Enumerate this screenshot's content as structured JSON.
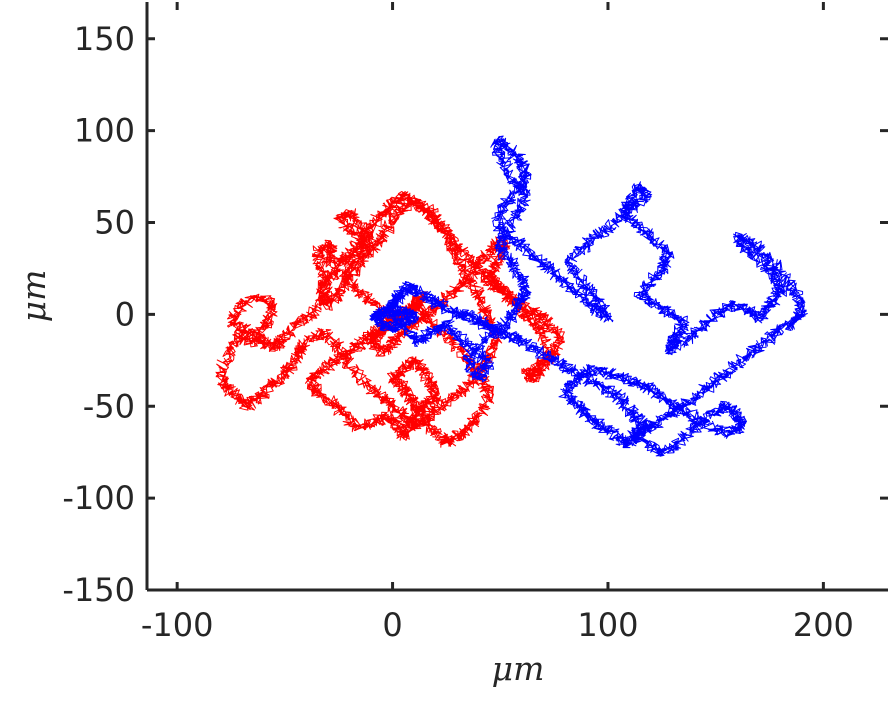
{
  "chart_data": {
    "type": "line",
    "title": "",
    "xlabel": "μm",
    "ylabel": "μm",
    "xlim": [
      -114,
      230
    ],
    "ylim": [
      -150,
      170
    ],
    "xticks": [
      -100,
      0,
      100,
      200
    ],
    "yticks": [
      150,
      100,
      50,
      0,
      -50,
      -100,
      -150
    ],
    "xtick_labels": [
      "-100",
      "0",
      "100",
      "200"
    ],
    "ytick_labels": [
      "150",
      "100",
      "50",
      "0",
      "-50",
      "-100",
      "-150"
    ],
    "grid": false,
    "legend": "none",
    "box": "left-and-bottom axes with top and right ticks",
    "series": [
      {
        "color": "#ff0000",
        "x": [
          0,
          -8,
          -15,
          -22,
          -18,
          -10,
          -14,
          -20,
          -25,
          -18,
          -12,
          -20,
          -30,
          -28,
          -35,
          -33,
          -30,
          -38,
          -45,
          -50,
          -55,
          -60,
          -65,
          -75,
          -70,
          -62,
          -55,
          -58,
          -65,
          -70,
          -75,
          -80,
          -78,
          -72,
          -68,
          -62,
          -58,
          -52,
          -48,
          -44,
          -40,
          -32,
          -25,
          -20,
          -12,
          -5,
          0,
          5,
          10,
          15,
          12,
          8,
          5,
          0,
          5,
          10,
          14,
          18,
          20,
          15,
          10,
          8,
          5,
          2,
          -2,
          -8,
          -15,
          -22,
          -28,
          -35,
          -38,
          -32,
          -26,
          -20,
          -14,
          -8,
          -2,
          5,
          12,
          18,
          25,
          32,
          38,
          42,
          45,
          40,
          35,
          30,
          25,
          20,
          15,
          20,
          28,
          35,
          40,
          44,
          48,
          45,
          42,
          38,
          32,
          28,
          25,
          18,
          10,
          4,
          0,
          -5,
          -10,
          -15,
          -20,
          -25,
          -30,
          -34,
          -30,
          -26,
          -20,
          -15,
          -10,
          -5,
          0,
          6,
          12,
          18,
          24,
          30,
          36,
          42,
          48,
          55,
          60,
          65,
          70,
          72,
          68,
          65,
          62,
          70,
          75,
          78,
          72,
          68,
          60,
          55,
          50,
          45,
          48,
          52,
          50,
          46,
          40,
          35,
          28,
          22,
          16,
          10,
          5,
          0,
          -5,
          -10,
          -6,
          -2,
          4,
          10,
          14,
          10,
          6,
          2,
          0
        ],
        "y": [
          0,
          5,
          12,
          20,
          30,
          38,
          48,
          55,
          52,
          45,
          40,
          32,
          28,
          38,
          35,
          22,
          10,
          0,
          -5,
          -12,
          -18,
          -15,
          -10,
          -5,
          5,
          10,
          5,
          -5,
          -15,
          -10,
          -20,
          -30,
          -40,
          -45,
          -50,
          -45,
          -40,
          -35,
          -30,
          -22,
          -15,
          -10,
          -18,
          -28,
          -38,
          -45,
          -50,
          -55,
          -60,
          -58,
          -52,
          -45,
          -40,
          -35,
          -30,
          -25,
          -30,
          -38,
          -45,
          -50,
          -55,
          -62,
          -66,
          -60,
          -56,
          -58,
          -62,
          -55,
          -48,
          -42,
          -35,
          -30,
          -25,
          -20,
          -15,
          -10,
          -5,
          0,
          5,
          -5,
          -12,
          -20,
          -28,
          -35,
          -45,
          -55,
          -62,
          -66,
          -70,
          -64,
          -58,
          -52,
          -45,
          -40,
          -32,
          -25,
          -15,
          -5,
          5,
          15,
          25,
          35,
          45,
          55,
          62,
          58,
          50,
          42,
          35,
          28,
          20,
          12,
          5,
          10,
          18,
          25,
          32,
          40,
          48,
          55,
          60,
          65,
          60,
          52,
          45,
          38,
          30,
          22,
          15,
          8,
          2,
          -5,
          -10,
          -20,
          -30,
          -35,
          -32,
          -28,
          -20,
          -12,
          -5,
          0,
          5,
          10,
          15,
          20,
          28,
          35,
          40,
          35,
          28,
          20,
          12,
          5,
          0,
          -5,
          -10,
          -15,
          -20,
          -15,
          -10,
          -5,
          0,
          5,
          10,
          5,
          0,
          -2,
          0
        ],
        "points_note": "dense random-walk trace"
      },
      {
        "color": "#0000ff",
        "x": [
          0,
          5,
          12,
          18,
          25,
          30,
          38,
          45,
          40,
          35,
          42,
          50,
          55,
          58,
          62,
          60,
          55,
          50,
          52,
          58,
          62,
          55,
          50,
          48,
          55,
          60,
          62,
          58,
          52,
          48,
          55,
          62,
          70,
          78,
          85,
          92,
          100,
          95,
          88,
          82,
          90,
          98,
          105,
          112,
          118,
          115,
          110,
          108,
          115,
          122,
          128,
          125,
          120,
          115,
          122,
          130,
          135,
          132,
          128,
          135,
          142,
          150,
          158,
          165,
          170,
          175,
          180,
          178,
          172,
          165,
          160,
          168,
          175,
          182,
          188,
          190,
          185,
          178,
          170,
          162,
          155,
          148,
          140,
          132,
          125,
          118,
          112,
          118,
          125,
          132,
          140,
          148,
          155,
          160,
          162,
          158,
          150,
          142,
          135,
          128,
          122,
          115,
          108,
          100,
          92,
          86,
          80,
          85,
          90,
          96,
          102,
          108,
          112,
          118,
          115,
          110,
          105,
          98,
          90,
          82,
          75,
          68,
          60,
          55,
          48,
          42,
          38,
          32,
          28,
          22,
          18,
          12,
          8,
          5,
          2,
          0,
          -2,
          -5,
          -8,
          -5,
          0,
          5,
          10,
          8,
          4,
          0
        ],
        "y": [
          0,
          -8,
          -15,
          -10,
          -5,
          -12,
          -20,
          -28,
          -35,
          -25,
          -15,
          -8,
          -2,
          5,
          12,
          20,
          28,
          35,
          45,
          55,
          65,
          75,
          85,
          95,
          90,
          82,
          75,
          68,
          60,
          50,
          42,
          35,
          28,
          20,
          12,
          5,
          -2,
          8,
          18,
          28,
          38,
          45,
          52,
          58,
          65,
          70,
          62,
          55,
          48,
          40,
          32,
          25,
          18,
          10,
          5,
          0,
          -5,
          -12,
          -20,
          -15,
          -8,
          0,
          5,
          2,
          -2,
          5,
          12,
          20,
          28,
          35,
          42,
          38,
          30,
          20,
          10,
          0,
          -5,
          -10,
          -18,
          -25,
          -32,
          -38,
          -45,
          -52,
          -58,
          -62,
          -65,
          -70,
          -75,
          -70,
          -62,
          -55,
          -50,
          -55,
          -60,
          -65,
          -62,
          -58,
          -52,
          -48,
          -42,
          -38,
          -35,
          -32,
          -30,
          -35,
          -42,
          -48,
          -55,
          -60,
          -65,
          -70,
          -68,
          -62,
          -58,
          -52,
          -45,
          -40,
          -35,
          -30,
          -25,
          -20,
          -15,
          -12,
          -8,
          -5,
          -2,
          0,
          2,
          5,
          8,
          12,
          15,
          12,
          8,
          5,
          2,
          0,
          -2,
          -5,
          -8,
          -5,
          -2,
          0,
          2,
          0
        ],
        "points_note": "dense random-walk trace"
      }
    ]
  }
}
